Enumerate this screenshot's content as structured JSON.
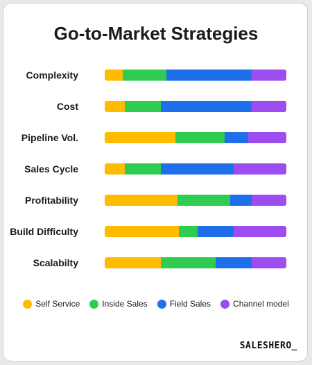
{
  "chart_data": {
    "type": "bar",
    "orientation": "horizontal",
    "stacked": true,
    "title": "Go-to-Market Strategies",
    "categories": [
      "Complexity",
      "Cost",
      "Pipeline Vol.",
      "Sales Cycle",
      "Profitability",
      "Build Difficulty",
      "Scalabilty"
    ],
    "series": [
      {
        "name": "Self Service",
        "color": "#FFBB00",
        "values": [
          10,
          11,
          39,
          11,
          40,
          41,
          31
        ]
      },
      {
        "name": "Inside Sales",
        "color": "#2FCC52",
        "values": [
          24,
          20,
          27,
          20,
          29,
          10,
          30
        ]
      },
      {
        "name": "Field Sales",
        "color": "#1F6FEB",
        "values": [
          47,
          50,
          13,
          40,
          12,
          20,
          20
        ]
      },
      {
        "name": "Channel model",
        "color": "#9B4DF0",
        "values": [
          19,
          19,
          21,
          29,
          19,
          29,
          19
        ]
      }
    ],
    "xlim": [
      0,
      100
    ],
    "grid": false,
    "legend": "bottom"
  },
  "brand": "SALESHERO_"
}
